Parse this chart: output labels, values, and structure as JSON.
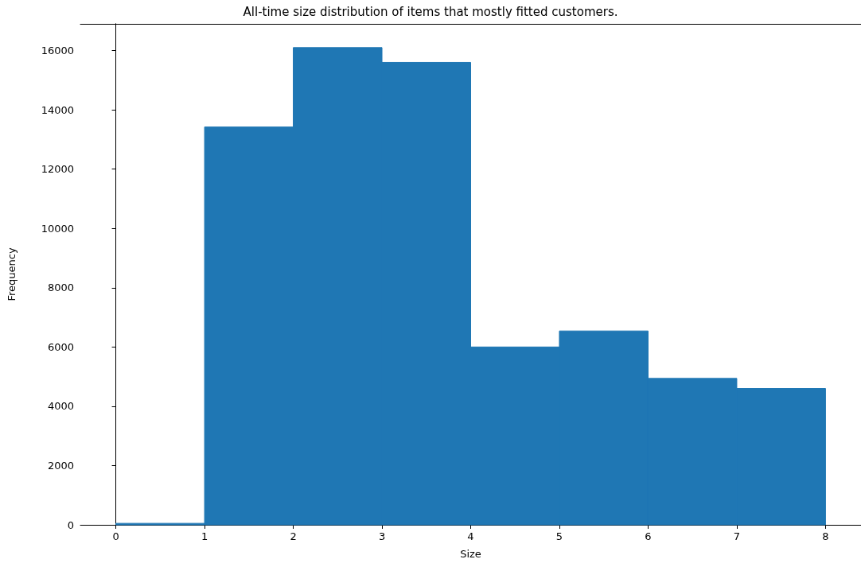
{
  "chart_data": {
    "type": "histogram",
    "title": "All-time size distribution of items that mostly fitted customers.",
    "xlabel": "Size",
    "ylabel": "Frequency",
    "bins": [
      0,
      1,
      2,
      3,
      4,
      5,
      6,
      7,
      8
    ],
    "values": [
      50,
      13420,
      16100,
      15600,
      6000,
      6540,
      4940,
      4600
    ],
    "color": "#1f77b4",
    "xlim": [
      -0.4,
      8.4
    ],
    "xticks": [
      0,
      1,
      2,
      3,
      4,
      5,
      6,
      7,
      8
    ],
    "ylim": [
      0,
      16900
    ],
    "yticks": [
      0,
      2000,
      4000,
      6000,
      8000,
      10000,
      12000,
      14000,
      16000
    ]
  }
}
